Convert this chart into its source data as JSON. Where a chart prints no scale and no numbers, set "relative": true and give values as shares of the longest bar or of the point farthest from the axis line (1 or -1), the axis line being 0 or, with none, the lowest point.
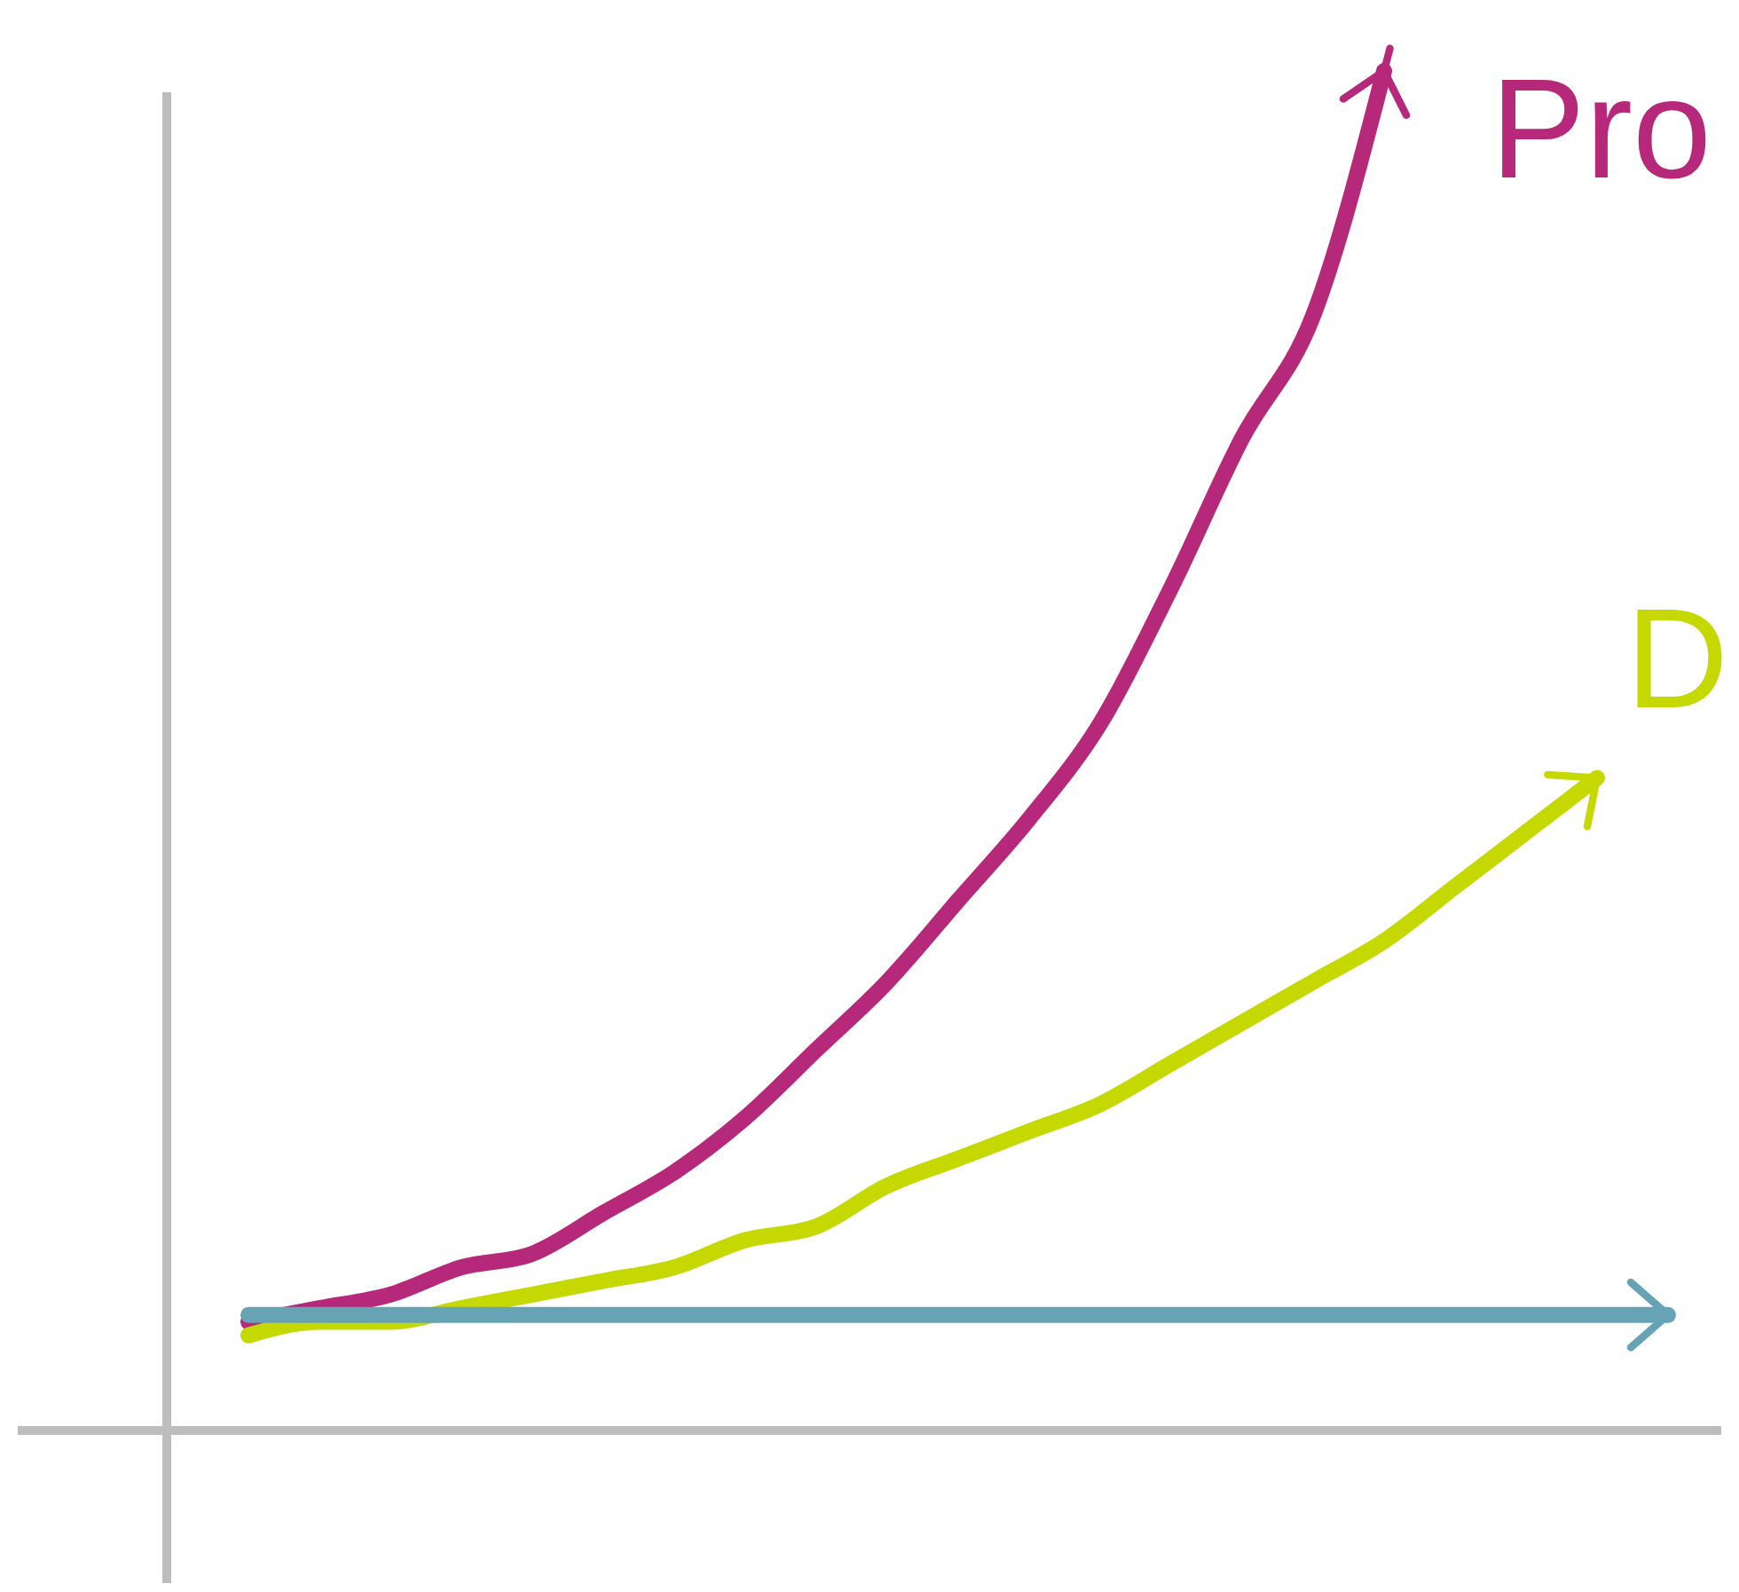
{
  "chart_data": {
    "type": "line",
    "relative": true,
    "legend": false,
    "marker": "none",
    "line_style": "solid",
    "categories": [
      null,
      null,
      null,
      null,
      null,
      null,
      null,
      null,
      null,
      null,
      null,
      null,
      null,
      null,
      null,
      null,
      null,
      null,
      null,
      null,
      null
    ],
    "series": [
      {
        "name": "Pro",
        "color": "#b5287a",
        "values": [
          0.08,
          0.09,
          0.1,
          0.12,
          0.13,
          0.16,
          0.19,
          0.23,
          0.28,
          0.33,
          0.39,
          0.45,
          0.52,
          0.62,
          0.73,
          0.82,
          1,
          null,
          null,
          null,
          null
        ]
      },
      {
        "name": "D",
        "color": "#c5d800",
        "values": [
          0.07,
          0.08,
          0.08,
          0.09,
          0.1,
          0.11,
          0.12,
          0.14,
          0.15,
          0.18,
          0.2,
          0.22,
          0.24,
          0.27,
          0.3,
          0.33,
          0.36,
          0.4,
          0.44,
          0.48,
          null
        ]
      },
      {
        "color": "#66a3b5",
        "values": [
          0.085,
          0.085,
          0.085,
          0.085,
          0.085,
          0.085,
          0.085,
          0.085,
          0.085,
          0.085,
          0.085,
          0.085,
          0.085,
          0.085,
          0.085,
          0.085,
          0.085,
          0.085,
          0.085,
          0.085,
          0.085
        ]
      }
    ]
  }
}
